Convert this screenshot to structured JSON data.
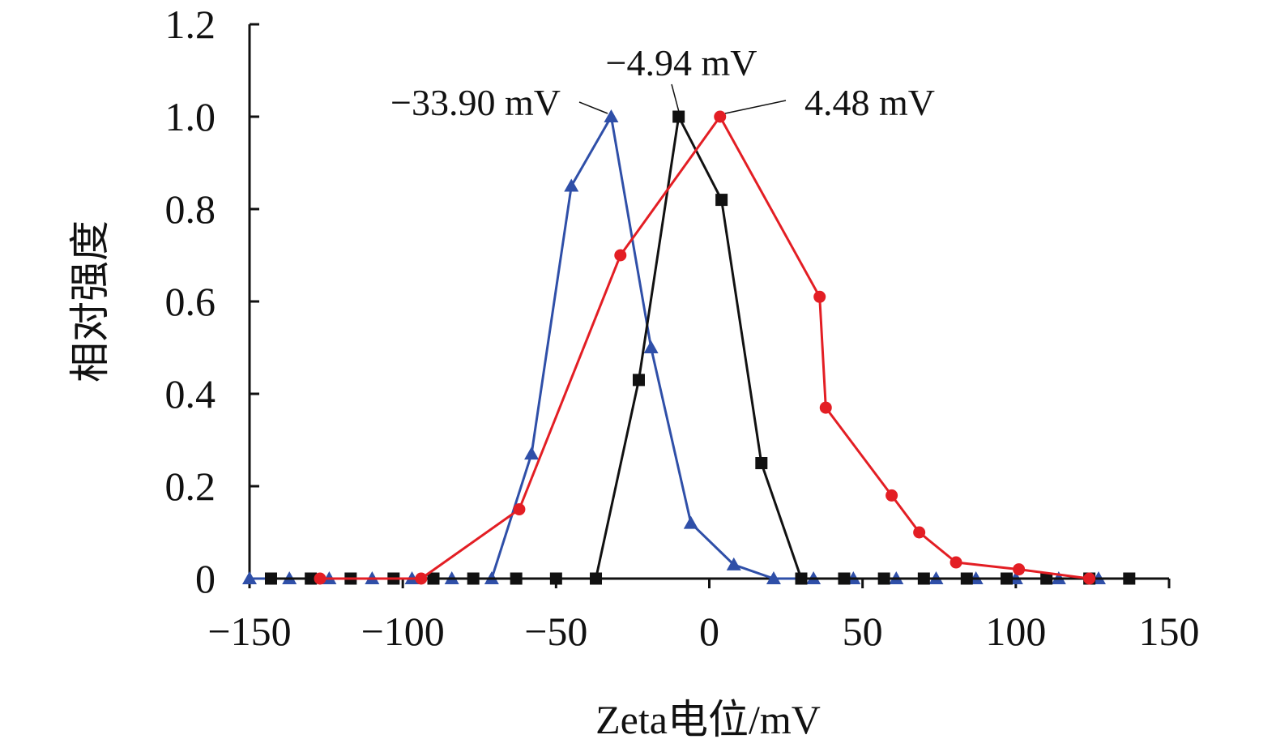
{
  "chart_data": {
    "type": "line",
    "title": "",
    "xlabel": "Zeta电位/mV",
    "ylabel": "相对强度",
    "xlim": [
      -150,
      150
    ],
    "ylim": [
      0,
      1.2
    ],
    "x_ticks": [
      -150,
      -100,
      -50,
      0,
      50,
      100,
      150
    ],
    "x_tick_labels": [
      "−150",
      "−100",
      "−50",
      "0",
      "50",
      "100",
      "150"
    ],
    "y_ticks": [
      0,
      0.2,
      0.4,
      0.6,
      0.8,
      1.0,
      1.2
    ],
    "y_tick_labels": [
      "0",
      "0.2",
      "0.4",
      "0.6",
      "0.8",
      "1.0",
      "1.2"
    ],
    "grid": false,
    "legend": "none",
    "series": [
      {
        "color": "#2f4fa8",
        "marker": "triangle",
        "peak": -33.9,
        "annotation": "−33.90 mV",
        "points": [
          [
            -150,
            0
          ],
          [
            -137,
            0
          ],
          [
            -124,
            0
          ],
          [
            -110,
            0
          ],
          [
            -97,
            0
          ],
          [
            -84,
            0
          ],
          [
            -71,
            0
          ],
          [
            -58,
            0.27
          ],
          [
            -45,
            0.85
          ],
          [
            -32,
            1.0
          ],
          [
            -19,
            0.5
          ],
          [
            -6,
            0.12
          ],
          [
            8,
            0.03
          ],
          [
            21,
            0
          ],
          [
            34,
            0
          ],
          [
            47,
            0
          ],
          [
            61,
            0
          ],
          [
            74,
            0
          ],
          [
            87,
            0
          ],
          [
            100,
            0
          ],
          [
            114,
            0
          ],
          [
            127,
            0
          ]
        ]
      },
      {
        "color": "#111111",
        "marker": "square",
        "peak": -4.94,
        "annotation": "−4.94 mV",
        "points": [
          [
            -143,
            0
          ],
          [
            -130,
            0
          ],
          [
            -117,
            0
          ],
          [
            -103,
            0
          ],
          [
            -90,
            0
          ],
          [
            -77,
            0
          ],
          [
            -63,
            0
          ],
          [
            -50,
            0
          ],
          [
            -37,
            0
          ],
          [
            -23,
            0.43
          ],
          [
            -10,
            1.0
          ],
          [
            4,
            0.82
          ],
          [
            17,
            0.25
          ],
          [
            30,
            0
          ],
          [
            44,
            0
          ],
          [
            57,
            0
          ],
          [
            70,
            0
          ],
          [
            84,
            0
          ],
          [
            97,
            0
          ],
          [
            110,
            0
          ],
          [
            124,
            0
          ],
          [
            137,
            0
          ]
        ]
      },
      {
        "color": "#e31e24",
        "marker": "circle",
        "peak": 4.48,
        "annotation": "4.48 mV",
        "points": [
          [
            -127,
            0
          ],
          [
            -94,
            0
          ],
          [
            -62,
            0.15
          ],
          [
            -29,
            0.7
          ],
          [
            3.5,
            1.0
          ],
          [
            36,
            0.61
          ],
          [
            38,
            0.37
          ],
          [
            59.5,
            0.18
          ],
          [
            68.5,
            0.1
          ],
          [
            80.5,
            0.035
          ],
          [
            101,
            0.02
          ],
          [
            124,
            0
          ]
        ]
      }
    ]
  }
}
